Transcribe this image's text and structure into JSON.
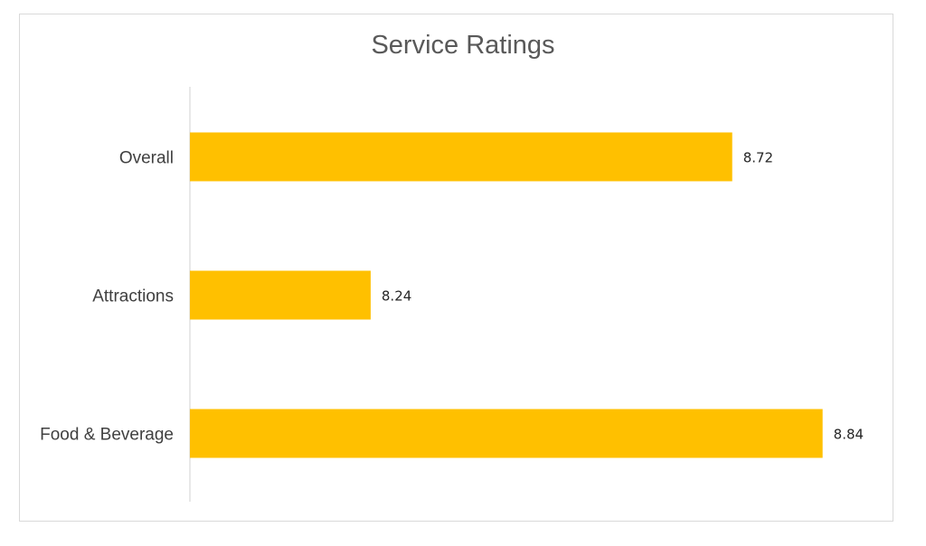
{
  "chart_data": {
    "type": "bar",
    "orientation": "horizontal",
    "title": "Service Ratings",
    "categories": [
      "Overall",
      "Attractions",
      "Food & Beverage"
    ],
    "values": [
      8.72,
      8.24,
      8.84
    ],
    "value_labels": [
      "8.72",
      "8.24",
      "8.84"
    ],
    "xlim": [
      8.0,
      8.85
    ],
    "xlabel": "",
    "ylabel": "",
    "grid": false,
    "legend": "none",
    "bar_color": "#FFC000",
    "axis_color": "#d9d9d9"
  }
}
